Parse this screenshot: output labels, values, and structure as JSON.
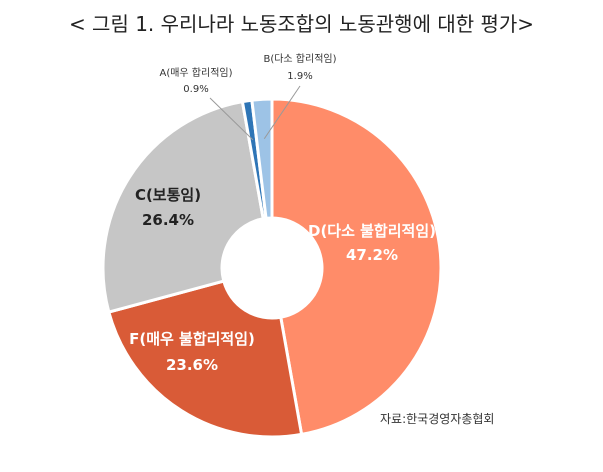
{
  "title": "< 그림 1. 우리나라 노동조합의 노동관행에 대한 평가>",
  "source": "자료:한국경영자총협회",
  "chart_data": {
    "type": "pie",
    "donut": true,
    "slices": [
      {
        "name": "D(다소 불합리적임)",
        "value": 47.2,
        "label": "47.2%",
        "color": "#FF8C69",
        "label_color": "#ffffff"
      },
      {
        "name": "F(매우 불합리적임)",
        "value": 23.6,
        "label": "23.6%",
        "color": "#D95B37",
        "label_color": "#ffffff"
      },
      {
        "name": "C(보통임)",
        "value": 26.4,
        "label": "26.4%",
        "color": "#C6C6C6",
        "label_color": "#222222"
      },
      {
        "name": "A(매우 합리적임)",
        "value": 0.9,
        "label": "0.9%",
        "color": "#2E75B6",
        "label_color": "#333333"
      },
      {
        "name": "B(다소 합리적임)",
        "value": 1.9,
        "label": "1.9%",
        "color": "#9DC3E6",
        "label_color": "#333333"
      }
    ]
  }
}
